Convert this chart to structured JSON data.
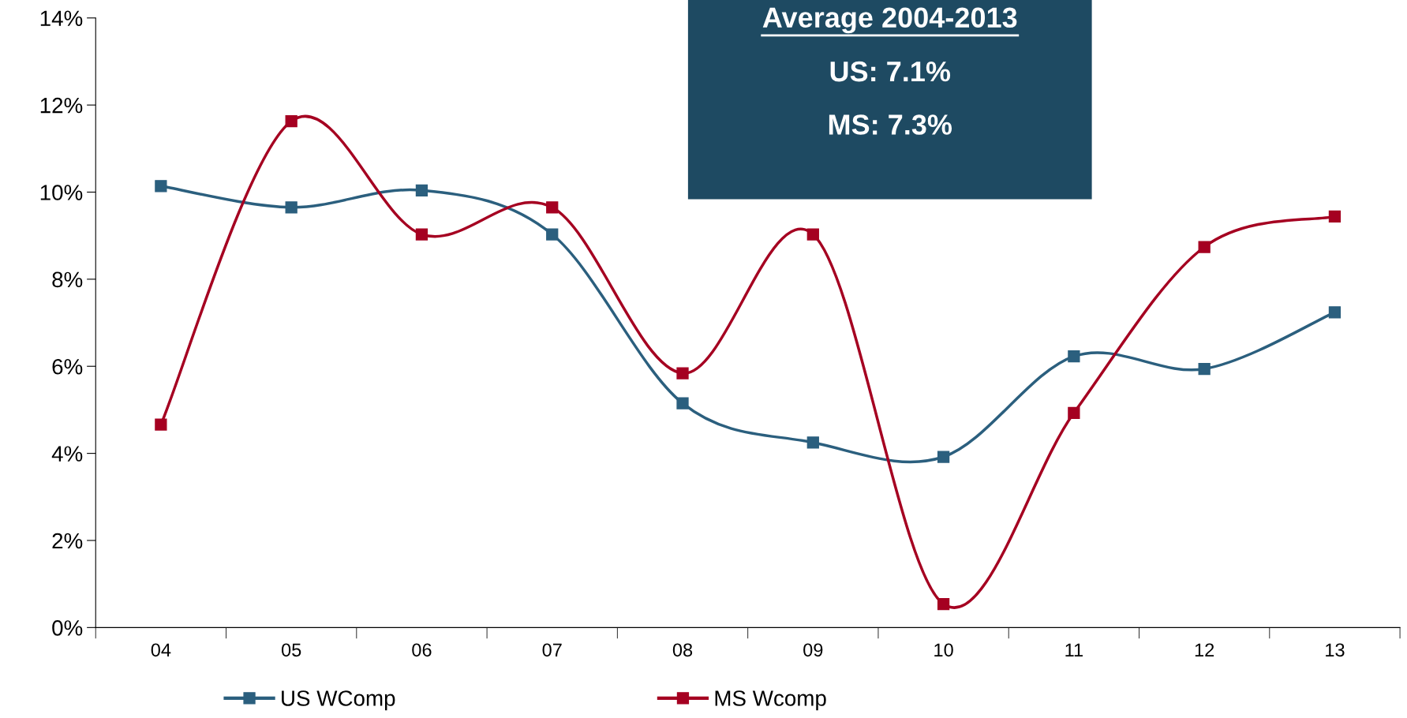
{
  "chart_data": {
    "type": "line",
    "categories": [
      "04",
      "05",
      "06",
      "07",
      "08",
      "09",
      "10",
      "11",
      "12",
      "13"
    ],
    "series": [
      {
        "name": "US WComp",
        "color": "#2b5f7e",
        "values": [
          10.14,
          9.65,
          10.04,
          9.03,
          5.15,
          4.25,
          3.92,
          6.23,
          5.94,
          7.24
        ]
      },
      {
        "name": "MS Wcomp",
        "color": "#a50021",
        "values": [
          4.66,
          11.63,
          9.03,
          9.65,
          5.84,
          9.03,
          0.54,
          4.93,
          8.74,
          9.44
        ]
      }
    ],
    "ylim": [
      0,
      14
    ],
    "yticks": [
      {
        "value": 0,
        "label": "0%"
      },
      {
        "value": 2,
        "label": "2%"
      },
      {
        "value": 4,
        "label": "4%"
      },
      {
        "value": 6,
        "label": "6%"
      },
      {
        "value": 8,
        "label": "8%"
      },
      {
        "value": 10,
        "label": "10%"
      },
      {
        "value": 12,
        "label": "12%"
      },
      {
        "value": 14,
        "label": "14%"
      }
    ],
    "annotations": [
      "Average 2004-2013",
      "US: 7.1%",
      "MS: 7.3%"
    ],
    "marker": "square",
    "line_style": "solid",
    "grid": false,
    "legend": "bottom"
  }
}
